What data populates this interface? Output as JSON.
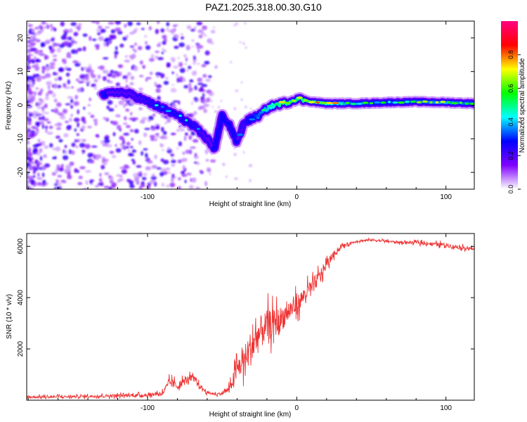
{
  "title": "PAZ1.2025.318.00.30.G10",
  "colors": {
    "snr_line": "#ee3333",
    "axis": "#000000"
  },
  "chart_data": [
    {
      "type": "heatmap",
      "name": "spectrogram",
      "xlabel": "Height of straight line (km)",
      "ylabel": "Frequency (Hz)",
      "xlim": [
        -181,
        119
      ],
      "ylim": [
        -25,
        25
      ],
      "xticks": [
        -100,
        0,
        100
      ],
      "yticks": [
        -20,
        -10,
        0,
        10,
        20
      ],
      "ridge": {
        "x": [
          -130,
          -120,
          -110,
          -100,
          -90,
          -80,
          -70,
          -60,
          -55,
          -50,
          -45,
          -40,
          -35,
          -30,
          -25,
          -20,
          -15,
          -10,
          -5,
          0,
          5,
          10,
          20,
          40,
          60,
          80,
          100,
          119
        ],
        "y": [
          3,
          4,
          3,
          1,
          -1,
          -3,
          -6,
          -10,
          -13,
          -3,
          -6,
          -11,
          -5,
          -4,
          -3,
          -1,
          0,
          0.5,
          1,
          2,
          1.5,
          1,
          0.5,
          0.5,
          0.8,
          1,
          0.8,
          0.5
        ],
        "level": [
          0.3,
          0.35,
          0.35,
          0.4,
          0.45,
          0.45,
          0.45,
          0.35,
          0.3,
          0.25,
          0.3,
          0.3,
          0.4,
          0.5,
          0.6,
          0.7,
          0.8,
          0.9,
          0.9,
          0.9,
          0.9,
          0.9,
          0.85,
          0.6,
          0.55,
          0.6,
          0.7,
          0.6
        ]
      },
      "colorbar": {
        "label": "Normalized spectral amplitude",
        "range": [
          0,
          1
        ],
        "ticks": [
          0.0,
          0.2,
          0.4,
          0.6,
          0.8
        ],
        "tick_labels": [
          "0.0",
          "0.2",
          "0.4",
          "0.6",
          "0.8"
        ],
        "stops": [
          "#ffffff",
          "#8000ff",
          "#0000ff",
          "#00ffff",
          "#00ff00",
          "#ffff00",
          "#ff0000",
          "#ff0080"
        ]
      }
    },
    {
      "type": "line",
      "name": "snr",
      "xlabel": "Height of straight line (km)",
      "ylabel": "SNR (10 * v/v)",
      "xlim": [
        -181,
        119
      ],
      "ylim": [
        0,
        6500
      ],
      "xticks": [
        -100,
        0,
        100
      ],
      "yticks": [
        2000,
        4000,
        6000
      ],
      "series": [
        {
          "name": "SNR",
          "x": [
            -181,
            -150,
            -120,
            -100,
            -90,
            -85,
            -80,
            -75,
            -70,
            -65,
            -60,
            -55,
            -50,
            -45,
            -40,
            -35,
            -30,
            -25,
            -20,
            -15,
            -10,
            -5,
            0,
            5,
            10,
            15,
            20,
            25,
            30,
            35,
            40,
            50,
            60,
            70,
            80,
            90,
            100,
            110,
            119
          ],
          "y": [
            120,
            140,
            180,
            200,
            280,
            700,
            550,
            750,
            900,
            550,
            300,
            230,
            260,
            450,
            1200,
            1600,
            2100,
            2600,
            2900,
            3000,
            3200,
            3500,
            3700,
            4100,
            4400,
            4800,
            5300,
            5700,
            6000,
            6100,
            6200,
            6250,
            6200,
            6150,
            6150,
            6100,
            6050,
            5950,
            5900
          ],
          "noise": [
            80,
            80,
            100,
            100,
            150,
            300,
            250,
            250,
            200,
            150,
            100,
            80,
            100,
            250,
            700,
            900,
            1200,
            1100,
            1000,
            900,
            800,
            700,
            600,
            500,
            500,
            450,
            300,
            200,
            120,
            100,
            80,
            70,
            70,
            80,
            90,
            110,
            130,
            120,
            100
          ]
        }
      ]
    }
  ]
}
